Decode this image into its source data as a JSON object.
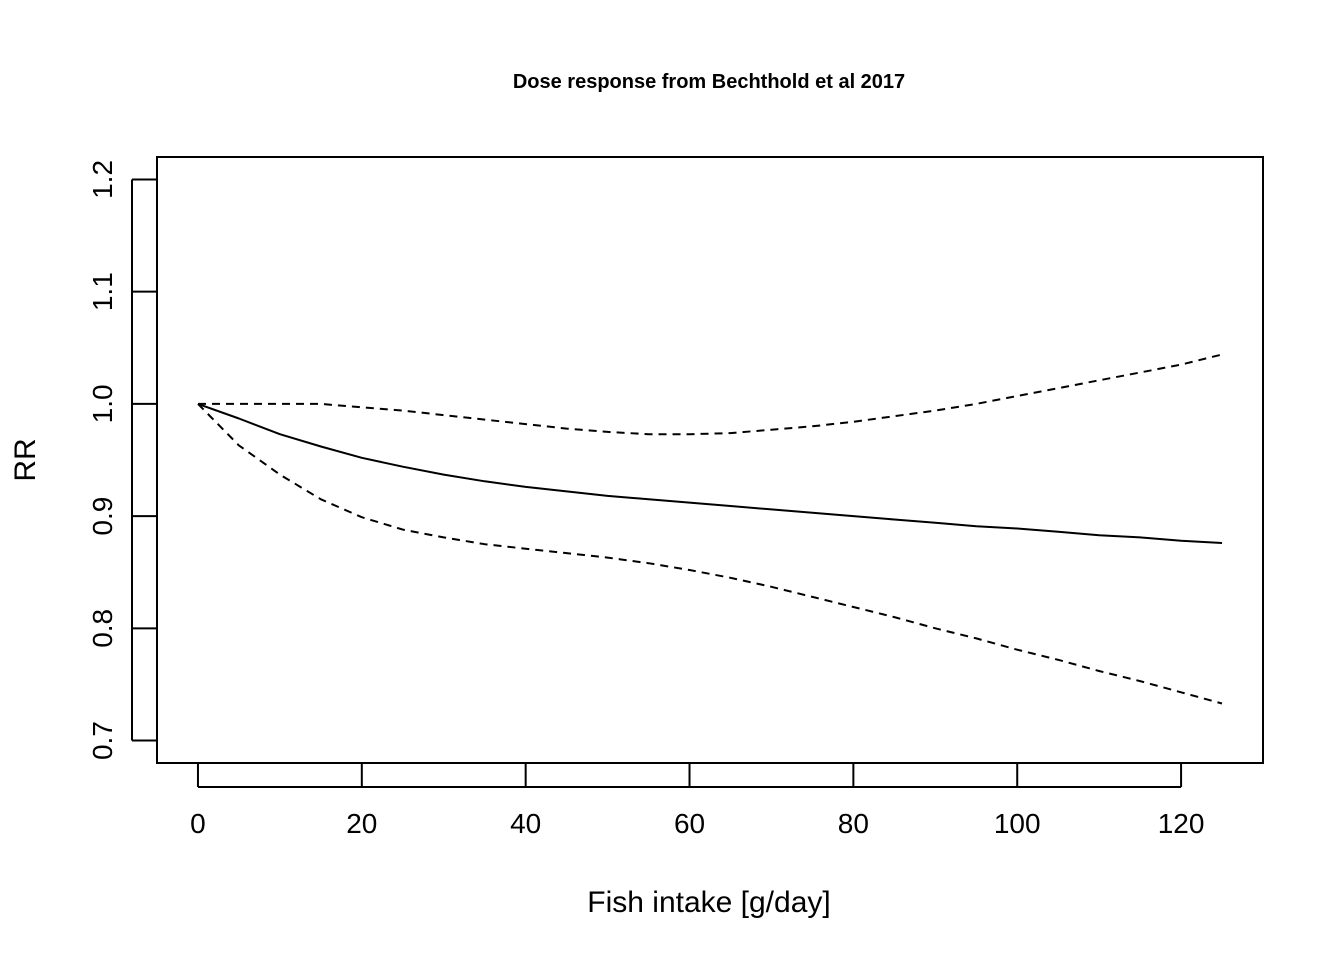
{
  "chart_data": {
    "type": "line",
    "title": "Dose response from Bechthold et al 2017",
    "xlabel": "Fish intake [g/day]",
    "ylabel": "RR",
    "xlim": [
      -5,
      130
    ],
    "ylim": [
      0.68,
      1.22
    ],
    "x_ticks": [
      0,
      20,
      40,
      60,
      80,
      100,
      120
    ],
    "y_ticks": [
      0.7,
      0.8,
      0.9,
      1.0,
      1.1,
      1.2
    ],
    "x_tick_labels": [
      "0",
      "20",
      "40",
      "60",
      "80",
      "100",
      "120"
    ],
    "y_tick_labels": [
      "0.7",
      "0.8",
      "0.9",
      "1.0",
      "1.1",
      "1.2"
    ],
    "grid": false,
    "legend": "none",
    "series": [
      {
        "style": "solid",
        "color": "#000000",
        "x": [
          0,
          5,
          10,
          15,
          20,
          25,
          30,
          35,
          40,
          45,
          50,
          55,
          60,
          65,
          70,
          75,
          80,
          85,
          90,
          95,
          100,
          105,
          110,
          115,
          120,
          125
        ],
        "y": [
          1.0,
          0.987,
          0.973,
          0.962,
          0.952,
          0.944,
          0.937,
          0.931,
          0.926,
          0.922,
          0.918,
          0.915,
          0.912,
          0.909,
          0.906,
          0.903,
          0.9,
          0.897,
          0.894,
          0.891,
          0.889,
          0.886,
          0.883,
          0.881,
          0.878,
          0.876
        ]
      },
      {
        "style": "dashed",
        "color": "#000000",
        "x": [
          0,
          5,
          10,
          15,
          20,
          25,
          30,
          35,
          40,
          45,
          50,
          55,
          60,
          65,
          70,
          75,
          80,
          85,
          90,
          95,
          100,
          105,
          110,
          115,
          120,
          125
        ],
        "y": [
          1.0,
          1.0,
          1.0,
          1.0,
          0.997,
          0.994,
          0.99,
          0.986,
          0.982,
          0.978,
          0.975,
          0.973,
          0.973,
          0.974,
          0.977,
          0.98,
          0.984,
          0.989,
          0.994,
          1.0,
          1.007,
          1.014,
          1.021,
          1.028,
          1.035,
          1.044
        ]
      },
      {
        "style": "dashed",
        "color": "#000000",
        "x": [
          0,
          5,
          10,
          15,
          20,
          25,
          30,
          35,
          40,
          45,
          50,
          55,
          60,
          65,
          70,
          75,
          80,
          85,
          90,
          95,
          100,
          105,
          110,
          115,
          120,
          125
        ],
        "y": [
          1.0,
          0.963,
          0.937,
          0.915,
          0.899,
          0.888,
          0.881,
          0.875,
          0.871,
          0.867,
          0.863,
          0.858,
          0.852,
          0.845,
          0.837,
          0.828,
          0.819,
          0.81,
          0.8,
          0.791,
          0.781,
          0.772,
          0.762,
          0.753,
          0.743,
          0.733
        ]
      }
    ]
  }
}
